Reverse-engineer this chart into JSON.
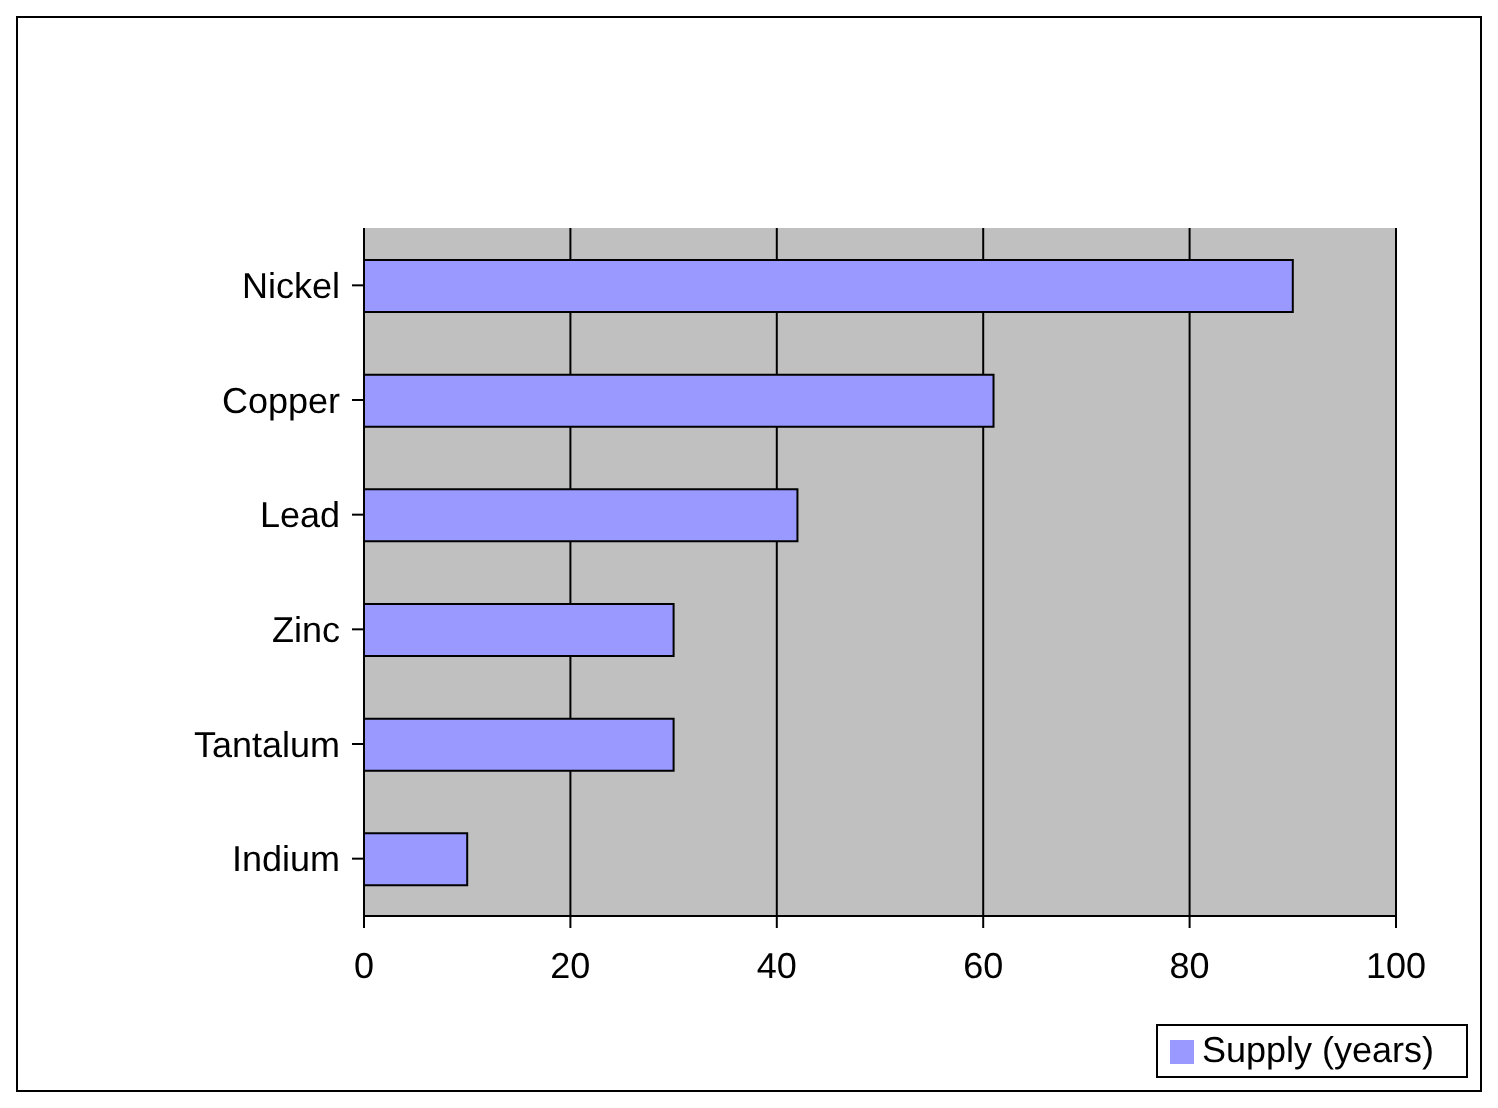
{
  "chart_data": {
    "type": "bar",
    "orientation": "horizontal",
    "categories": [
      "Nickel",
      "Copper",
      "Lead",
      "Zinc",
      "Tantalum",
      "Indium"
    ],
    "series": [
      {
        "name": "Supply (years)",
        "color": "#9999ff",
        "values": [
          90,
          61,
          42,
          30,
          30,
          10
        ]
      }
    ],
    "xlim": [
      0,
      100
    ],
    "xticks": [
      0,
      20,
      40,
      60,
      80,
      100
    ],
    "grid": "x",
    "legend": "bottom right"
  }
}
